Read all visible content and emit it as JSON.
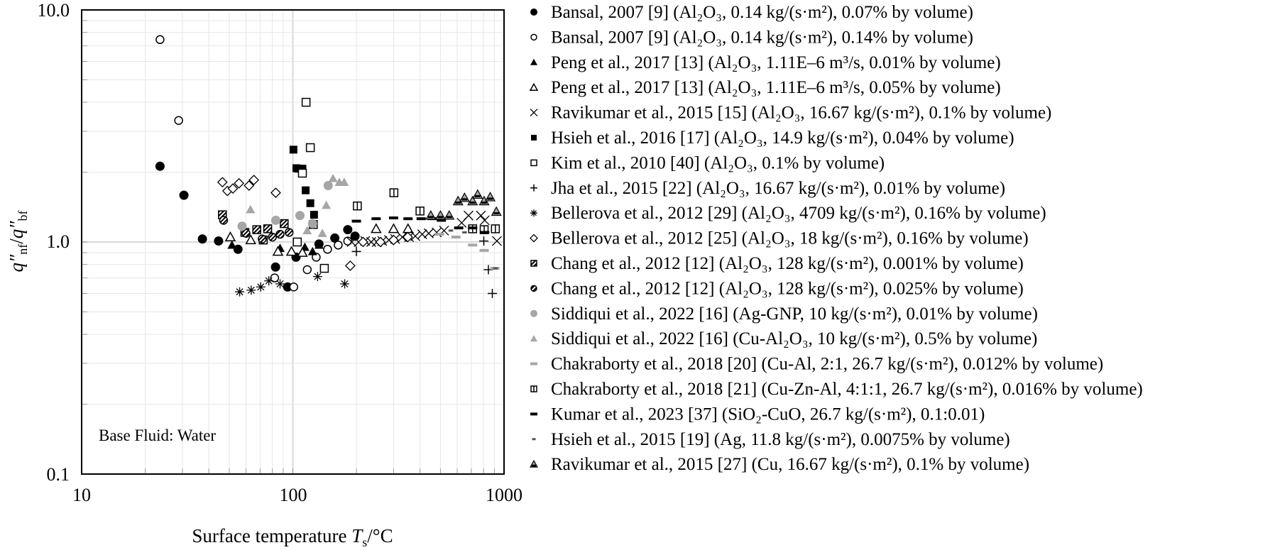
{
  "chart_data": {
    "type": "scatter",
    "xscale": "log",
    "yscale": "log",
    "xlim": [
      10,
      1000
    ],
    "ylim": [
      0.1,
      10
    ],
    "grid": true,
    "xticks": [
      "10",
      "100",
      "1000"
    ],
    "yticks": [
      "0.1",
      "1.0",
      "10.0"
    ],
    "xlabel_parts": [
      "Surface temperature ",
      "T",
      "s",
      "/°C"
    ],
    "ylabel_parts": [
      "q",
      "″",
      "nf",
      "/",
      "q",
      "″",
      "bf"
    ],
    "annotation": "Base Fluid: Water",
    "legend_position": "right",
    "colors": {
      "black": "#000000",
      "gray": "#a6a6a6",
      "grid": "#e6e6e6"
    },
    "series": [
      {
        "name": "Bansal, 2007 [9] (Al₂O₃, 0.14 kg/(s·m²), 0.07% by volume)",
        "marker": "filled-circle",
        "points": [
          [
            23.5,
            2.12
          ],
          [
            30.5,
            1.59
          ],
          [
            37.3,
            1.03
          ],
          [
            44.5,
            1.01
          ],
          [
            55,
            0.93
          ],
          [
            82.8,
            0.78
          ],
          [
            94.5,
            0.64
          ],
          [
            103.5,
            0.86
          ],
          [
            133,
            0.98
          ],
          [
            158,
            1.04
          ],
          [
            182,
            1.13
          ],
          [
            197,
            1.06
          ]
        ]
      },
      {
        "name": "Bansal, 2007 [9] (Al₂O₃, 0.14 kg/(s·m²), 0.14% by volume)",
        "marker": "open-circle",
        "points": [
          [
            23.5,
            7.45
          ],
          [
            28.8,
            3.34
          ],
          [
            82,
            0.7
          ],
          [
            101,
            0.64
          ],
          [
            117,
            0.76
          ],
          [
            129,
            0.86
          ],
          [
            146,
            0.93
          ],
          [
            164,
            0.97
          ],
          [
            182,
            1.01
          ]
        ]
      },
      {
        "name": "Peng et al., 2017 [13] (Al₂O₃, 1.11E–6 m³/s, 0.01% by volume)",
        "marker": "filled-triangle",
        "points": [
          [
            51.5,
            0.97
          ],
          [
            87,
            0.94
          ],
          [
            114,
            0.95
          ],
          [
            124,
            0.91
          ],
          [
            133,
            0.97
          ]
        ]
      },
      {
        "name": "Peng et al., 2017 [13] (Al₂O₃, 1.11E–6 m³/s, 0.05% by volume)",
        "marker": "open-triangle",
        "points": [
          [
            50.6,
            1.05
          ],
          [
            63.2,
            1.02
          ],
          [
            85,
            0.91
          ],
          [
            98.5,
            0.91
          ],
          [
            111,
            0.9
          ],
          [
            248,
            1.14
          ],
          [
            300,
            1.14
          ],
          [
            351,
            1.14
          ]
        ]
      },
      {
        "name": "Ravikumar et al., 2015 [15] (Al₂O₃, 16.67 kg/(s·m²), 0.1% by volume)",
        "marker": "x",
        "points": [
          [
            190,
            1.0
          ],
          [
            205,
            1.0
          ],
          [
            220,
            1.01
          ],
          [
            235,
            1.0
          ],
          [
            250,
            1.0
          ],
          [
            265,
            1.01
          ],
          [
            285,
            1.02
          ],
          [
            305,
            1.03
          ],
          [
            330,
            1.05
          ],
          [
            355,
            1.05
          ],
          [
            380,
            1.06
          ],
          [
            410,
            1.08
          ],
          [
            440,
            1.09
          ],
          [
            480,
            1.1
          ],
          [
            520,
            1.12
          ],
          [
            630,
            1.21
          ],
          [
            679,
            1.3
          ],
          [
            777,
            1.3
          ],
          [
            810,
            1.24
          ],
          [
            925,
            1.01
          ]
        ]
      },
      {
        "name": "Hsieh et al., 2016 [17] (Al₂O₃, 14.9 kg/(s·m²), 0.04% by volume)",
        "marker": "filled-square",
        "points": [
          [
            100.7,
            2.5
          ],
          [
            104,
            2.08
          ],
          [
            106,
            2.07
          ],
          [
            111,
            2.07
          ],
          [
            115,
            1.67
          ],
          [
            121,
            1.47
          ],
          [
            126,
            1.31
          ]
        ]
      },
      {
        "name": "Kim et al., 2010 [40] (Al₂O₃, 0.1% by volume)",
        "marker": "open-square",
        "points": [
          [
            115.5,
            4.0
          ],
          [
            121,
            2.55
          ],
          [
            111,
            1.98
          ],
          [
            125,
            1.19
          ],
          [
            105,
            1.0
          ],
          [
            141,
            0.77
          ],
          [
            72.4,
            1.02
          ]
        ]
      },
      {
        "name": "Jha et al., 2015 [22] (Al₂O₃, 16.67 kg/(s·m²), 0.01% by volume)",
        "marker": "plus",
        "points": [
          [
            200,
            0.91
          ],
          [
            802,
            1.01
          ],
          [
            843,
            0.76
          ],
          [
            880,
            0.6
          ]
        ]
      },
      {
        "name": "Bellerova et al., 2012 [29] (Al₂O₃, 4709 kg/(s·m²), 0.16% by volume)",
        "marker": "asterisk",
        "points": [
          [
            56,
            0.61
          ],
          [
            63.5,
            0.62
          ],
          [
            70.5,
            0.64
          ],
          [
            77,
            0.68
          ],
          [
            87,
            0.66
          ],
          [
            131,
            0.71
          ],
          [
            176,
            0.66
          ]
        ]
      },
      {
        "name": "Bellerova et al., 2012 [25] (Al₂O₃, 18 kg/(s·m²), 0.16% by volume)",
        "marker": "open-diamond",
        "points": [
          [
            46.4,
            1.81
          ],
          [
            49,
            1.66
          ],
          [
            52,
            1.7
          ],
          [
            55.6,
            1.79
          ],
          [
            62,
            1.75
          ],
          [
            65.4,
            1.85
          ],
          [
            83,
            1.63
          ],
          [
            187,
            0.79
          ],
          [
            215,
            1.0
          ],
          [
            260,
            1.0
          ],
          [
            300,
            1.02
          ],
          [
            350,
            1.05
          ]
        ]
      },
      {
        "name": "Chang et al., 2012 [12] (Al₂O₃, 128 kg/(s·m²), 0.001% by volume)",
        "marker": "hatched-square",
        "points": [
          [
            46.4,
            1.31
          ],
          [
            59.3,
            1.1
          ],
          [
            67.5,
            1.13
          ],
          [
            76,
            1.14
          ],
          [
            91,
            1.2
          ]
        ]
      },
      {
        "name": "Chang et al., 2012 [12] (Al₂O₃, 128 kg/(s·m²), 0.025% by volume)",
        "marker": "hatched-circle",
        "points": [
          [
            47,
            1.24
          ],
          [
            60,
            1.09
          ],
          [
            71.6,
            1.03
          ],
          [
            80,
            1.05
          ],
          [
            87,
            1.08
          ],
          [
            96,
            1.1
          ]
        ]
      },
      {
        "name": "Siddiqui et al., 2022 [16] (Ag-GNP, 10 kg/(s·m²), 0.01% by volume)",
        "marker": "gray-circle",
        "points": [
          [
            57.5,
            1.17
          ],
          [
            83,
            1.24
          ],
          [
            108,
            1.3
          ],
          [
            124,
            1.2
          ],
          [
            147,
            1.75
          ]
        ]
      },
      {
        "name": "Siddiqui et al., 2022 [16] (Cu-Al₂O₃, 10 kg/(s·m²), 0.5% by volume)",
        "marker": "gray-triangle",
        "points": [
          [
            63,
            1.38
          ],
          [
            117,
            1.12
          ],
          [
            138,
            1.09
          ],
          [
            144,
            1.44
          ],
          [
            155,
            1.88
          ],
          [
            166,
            1.81
          ],
          [
            175,
            1.81
          ]
        ]
      },
      {
        "name": "Chakraborty et al., 2018 [20] (Cu-Al, 2:1, 26.7 kg/(s·m²), 0.012% by volume)",
        "marker": "gray-dash",
        "points": [
          [
            495,
            1.08
          ],
          [
            592,
            1.05
          ],
          [
            710,
            0.97
          ],
          [
            805,
            0.92
          ],
          [
            905,
            0.77
          ]
        ]
      },
      {
        "name": "Chakraborty et al., 2018 [21] (Cu-Zn-Al, 4:1:1, 26.7 kg/(s·m²), 0.016% by volume)",
        "marker": "bar-square",
        "points": [
          [
            202,
            1.43
          ],
          [
            301,
            1.63
          ],
          [
            400,
            1.36
          ],
          [
            710,
            1.14
          ],
          [
            805,
            1.13
          ],
          [
            910,
            1.14
          ]
        ]
      },
      {
        "name": "Kumar et al., 2023 [37] (SiO₂-CuO, 26.7 kg/(s·m²), 0.1:0.01)",
        "marker": "dash",
        "points": [
          [
            200,
            1.23
          ],
          [
            248,
            1.26
          ],
          [
            300,
            1.27
          ],
          [
            351,
            1.26
          ],
          [
            405,
            1.26
          ],
          [
            456,
            1.26
          ],
          [
            505,
            1.24
          ],
          [
            610,
            1.15
          ],
          [
            710,
            1.15
          ],
          [
            810,
            1.1
          ]
        ]
      },
      {
        "name": "Hsieh et al., 2015 [19] (Ag, 11.8 kg/(s·m²), 0.0075% by volume)",
        "marker": "small-dash",
        "points": [
          [
            560,
            1.12
          ],
          [
            650,
            1.1
          ],
          [
            910,
            0.77
          ]
        ]
      },
      {
        "name": "Ravikumar et al., 2015 [27] (Cu, 16.67 kg/(s·m²), 0.1% by volume)",
        "marker": "gray-triangle-black",
        "points": [
          [
            450,
            1.3
          ],
          [
            500,
            1.3
          ],
          [
            550,
            1.3
          ],
          [
            606,
            1.5
          ],
          [
            650,
            1.55
          ],
          [
            710,
            1.5
          ],
          [
            750,
            1.6
          ],
          [
            805,
            1.5
          ],
          [
            860,
            1.56
          ],
          [
            920,
            1.35
          ]
        ]
      }
    ]
  }
}
